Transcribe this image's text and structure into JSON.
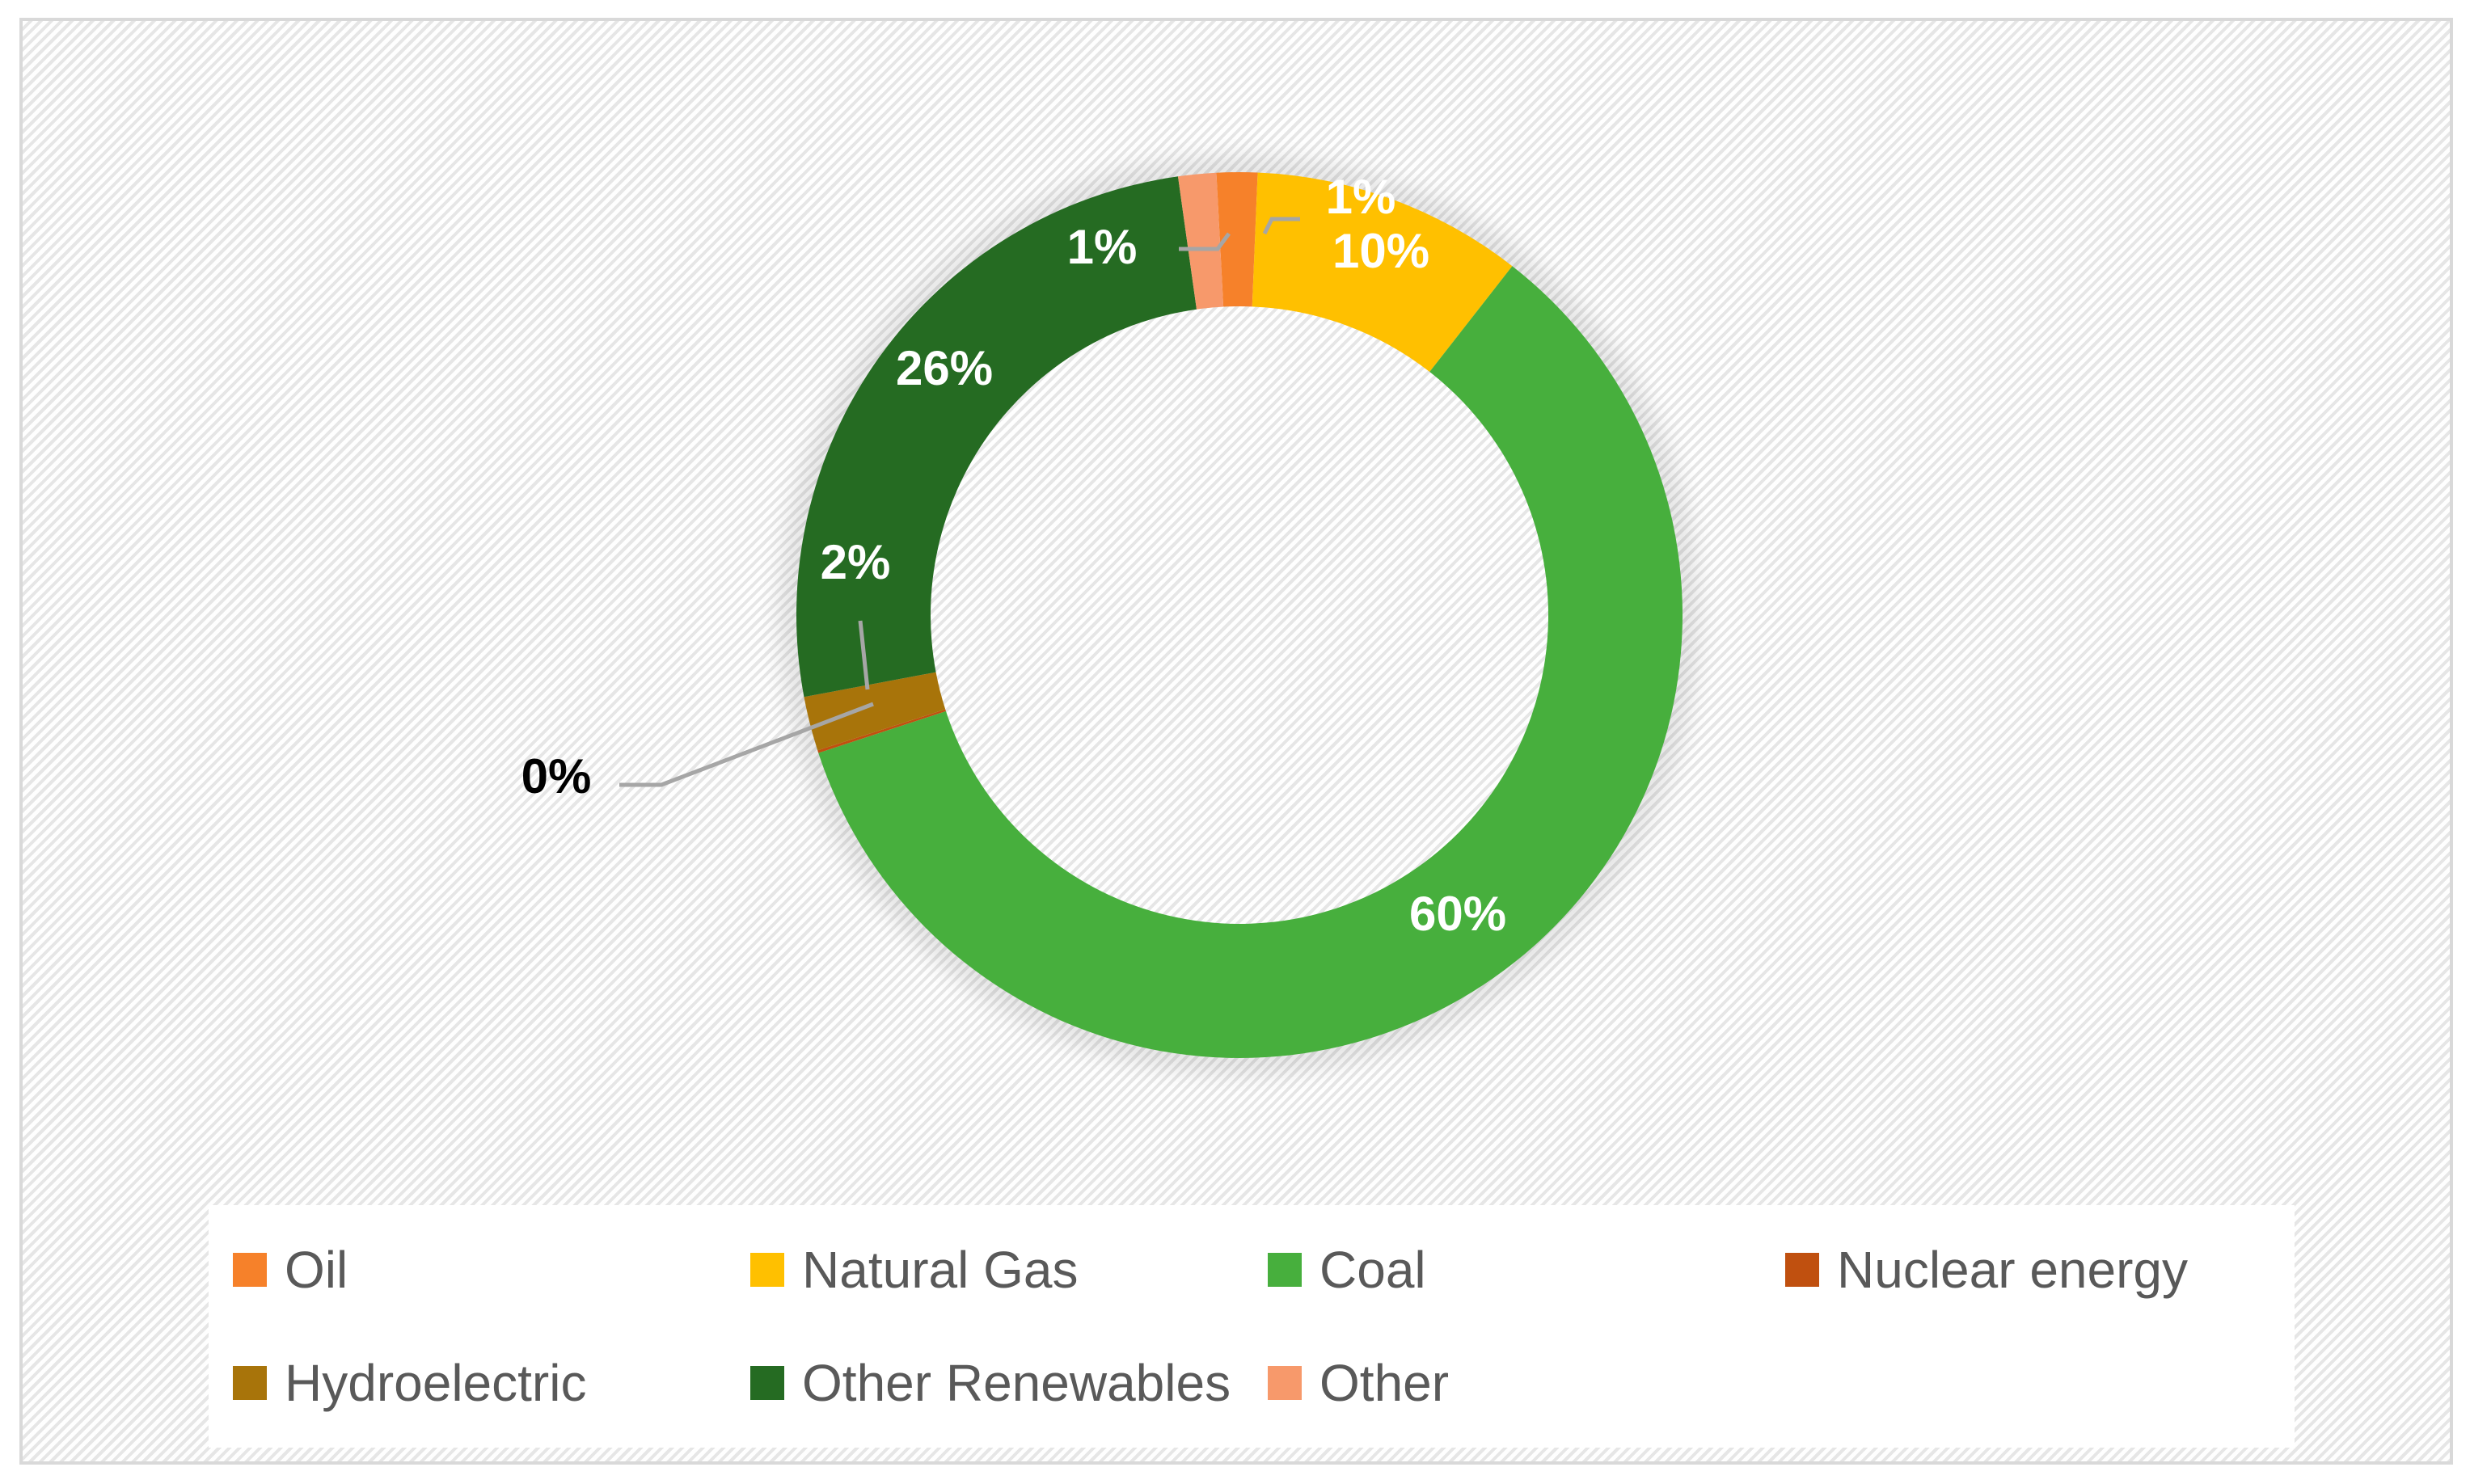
{
  "chart_data": {
    "type": "pie",
    "subtype": "doughnut",
    "categories": [
      "Oil",
      "Natural Gas",
      "Coal",
      "Nuclear energy",
      "Hydroelectric",
      "Other Renewables",
      "Other"
    ],
    "values": [
      1.5,
      10,
      60,
      0.1,
      2,
      26,
      1.4
    ],
    "data_labels": [
      "1%",
      "10%",
      "60%",
      "0%",
      "2%",
      "26%",
      "1%"
    ],
    "colors": [
      "#f6812a",
      "#ffc000",
      "#47af3d",
      "#c0500f",
      "#a8740a",
      "#256b22",
      "#f7996b"
    ],
    "title": "",
    "legend_position": "bottom",
    "grid": false
  }
}
